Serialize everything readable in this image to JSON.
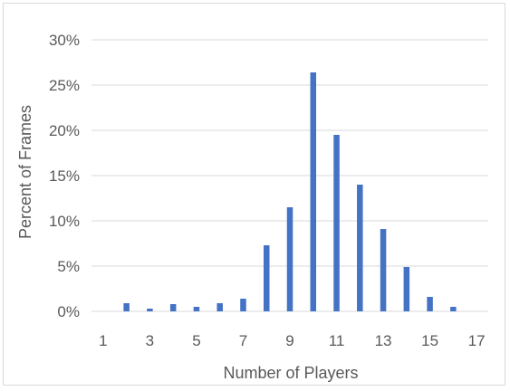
{
  "chart_data": {
    "type": "bar",
    "title": "",
    "xlabel": "Number of Players",
    "ylabel": "Percent of Frames",
    "ylim": [
      0,
      30
    ],
    "y_ticks": [
      {
        "value": 0,
        "label": "0%"
      },
      {
        "value": 5,
        "label": "5%"
      },
      {
        "value": 10,
        "label": "10%"
      },
      {
        "value": 15,
        "label": "15%"
      },
      {
        "value": 20,
        "label": "20%"
      },
      {
        "value": 25,
        "label": "25%"
      },
      {
        "value": 30,
        "label": "30%"
      }
    ],
    "x_tick_labels": [
      "1",
      "3",
      "5",
      "7",
      "9",
      "11",
      "13",
      "15",
      "17"
    ],
    "categories": [
      1,
      2,
      3,
      4,
      5,
      6,
      7,
      8,
      9,
      10,
      11,
      12,
      13,
      14,
      15,
      16,
      17
    ],
    "values": [
      0,
      0.9,
      0.3,
      0.8,
      0.5,
      0.9,
      1.4,
      7.3,
      11.5,
      26.4,
      19.5,
      14.0,
      9.1,
      4.9,
      1.6,
      0.5,
      0
    ],
    "grid": true,
    "legend": "none",
    "bar_color": "#4472c4",
    "grid_color": "#d9d9d9"
  }
}
